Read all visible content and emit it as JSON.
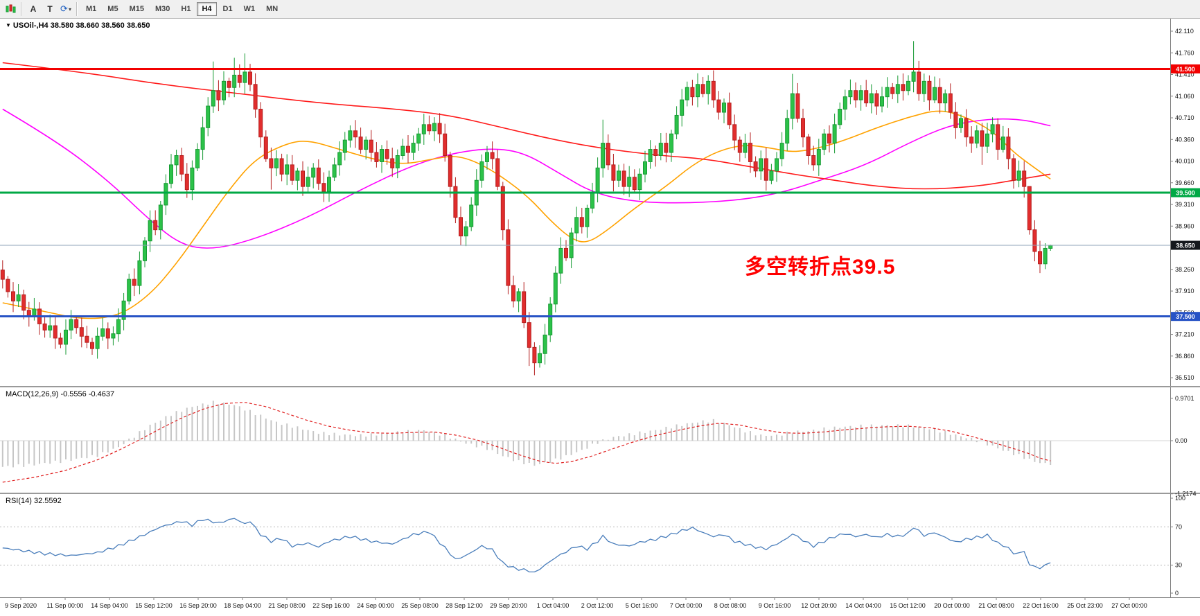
{
  "toolbar": {
    "chart_icon": "candlestick-chart-icon",
    "tools": [
      {
        "label": "A"
      },
      {
        "label": "T"
      }
    ],
    "refresh_icon": "cycle-arrows-icon",
    "timeframes": [
      "M1",
      "M5",
      "M15",
      "M30",
      "H1",
      "H4",
      "D1",
      "W1",
      "MN"
    ],
    "active_timeframe": "H4"
  },
  "chart": {
    "symbol": "USOil-,H4",
    "ohlc": "38.580 38.660 38.560 38.650",
    "open": "38.580",
    "high": "38.660",
    "low": "38.560",
    "close": "38.650",
    "annotation": {
      "text": "多空转折点39.5",
      "color": "#ff0000"
    },
    "price_axis": [
      "42.110",
      "41.760",
      "41.410",
      "41.060",
      "40.710",
      "40.360",
      "40.010",
      "39.660",
      "39.310",
      "38.960",
      "38.610",
      "38.260",
      "37.910",
      "37.560",
      "37.210",
      "36.860",
      "36.510"
    ],
    "hlines": [
      {
        "price": 41.5,
        "label": "41.500",
        "color": "#f20000",
        "width": 3,
        "type": "resistance"
      },
      {
        "price": 39.5,
        "label": "39.500",
        "color": "#00a845",
        "width": 3,
        "type": "pivot"
      },
      {
        "price": 37.5,
        "label": "37.500",
        "color": "#2753c5",
        "width": 3,
        "type": "support"
      },
      {
        "price": 38.65,
        "label": "38.650",
        "color": "#15181d",
        "width": 1,
        "type": "current",
        "line_color": "#8fa3b8"
      }
    ]
  },
  "macd": {
    "label": "MACD(12,26,9) -0.5556 -0.4637",
    "value": -0.5556,
    "signal": -0.4637,
    "axis": [
      {
        "v": 0.9701,
        "label": "0.9701"
      },
      {
        "v": 0,
        "label": "0.00"
      },
      {
        "v": -1.2174,
        "label": "-1.2174"
      }
    ]
  },
  "rsi": {
    "label": "RSI(14) 32.5592",
    "value": 32.5592,
    "axis": [
      {
        "v": 100,
        "label": "100"
      },
      {
        "v": 70,
        "label": "70"
      },
      {
        "v": 30,
        "label": "30"
      },
      {
        "v": 0,
        "label": "0"
      }
    ],
    "levels": [
      70,
      30
    ]
  },
  "time_axis": [
    "9 Sep 2020",
    "11 Sep 00:00",
    "14 Sep 04:00",
    "15 Sep 12:00",
    "16 Sep 20:00",
    "18 Sep 04:00",
    "21 Sep 08:00",
    "22 Sep 16:00",
    "24 Sep 00:00",
    "25 Sep 08:00",
    "28 Sep 12:00",
    "29 Sep 20:00",
    "1 Oct 04:00",
    "2 Oct 12:00",
    "5 Oct 16:00",
    "7 Oct 00:00",
    "8 Oct 08:00",
    "9 Oct 16:00",
    "12 Oct 20:00",
    "14 Oct 04:00",
    "15 Oct 12:00",
    "20 Oct 00:00",
    "21 Oct 08:00",
    "22 Oct 16:00",
    "25 Oct 23:00",
    "27 Oct 00:00"
  ],
  "colors": {
    "bull_fill": "#2cc249",
    "bull_stroke": "#169a33",
    "bear_fill": "#e12d2d",
    "bear_stroke": "#b51f1f",
    "ma_red": "#ff1a1a",
    "ma_magenta": "#ff00ff",
    "ma_orange": "#ffa200",
    "macd_hist": "#c6c6c6",
    "macd_signal": "#e02020",
    "rsi_line": "#4a7ebb",
    "axis_text": "#111111",
    "separator": "#9a9a9a",
    "panel_bg": "#ffffff"
  },
  "chart_data": {
    "type": "candlestick",
    "timeframe": "H4",
    "symbol": "USOil",
    "price_range": [
      36.42,
      42.31
    ],
    "first_open": 38.25,
    "candles_closes": [
      38.1,
      37.9,
      37.75,
      37.85,
      37.6,
      37.5,
      37.62,
      37.38,
      37.28,
      37.35,
      37.15,
      37.05,
      37.28,
      37.45,
      37.32,
      37.18,
      37.08,
      36.98,
      37.18,
      37.3,
      37.15,
      37.22,
      37.45,
      37.75,
      38.1,
      38.0,
      38.4,
      38.72,
      39.05,
      38.9,
      39.3,
      39.65,
      39.95,
      40.1,
      39.8,
      39.55,
      39.9,
      40.2,
      40.55,
      40.9,
      41.15,
      41.0,
      41.3,
      41.2,
      41.4,
      41.28,
      41.45,
      41.25,
      40.85,
      40.4,
      40.05,
      39.9,
      40.05,
      39.8,
      39.95,
      39.7,
      39.85,
      39.6,
      39.75,
      39.9,
      39.65,
      39.52,
      39.75,
      39.95,
      40.15,
      40.35,
      40.5,
      40.4,
      40.2,
      40.35,
      40.15,
      40.0,
      40.2,
      40.05,
      39.9,
      40.1,
      40.25,
      40.15,
      40.3,
      40.45,
      40.6,
      40.5,
      40.62,
      40.45,
      40.1,
      39.6,
      39.1,
      38.8,
      38.95,
      39.3,
      39.7,
      40.0,
      40.15,
      40.05,
      39.6,
      38.9,
      38.0,
      37.75,
      37.9,
      37.4,
      37.0,
      36.75,
      36.9,
      37.2,
      37.7,
      38.2,
      38.6,
      38.45,
      38.85,
      39.1,
      38.95,
      39.25,
      39.5,
      39.9,
      40.3,
      39.95,
      39.7,
      39.85,
      39.6,
      39.75,
      39.55,
      39.8,
      40.0,
      40.2,
      40.1,
      40.3,
      40.15,
      40.45,
      40.75,
      41.0,
      41.2,
      41.05,
      41.25,
      41.1,
      41.3,
      41.0,
      40.8,
      40.95,
      40.6,
      40.35,
      40.15,
      40.3,
      40.0,
      39.85,
      40.05,
      39.7,
      39.85,
      40.05,
      40.3,
      40.7,
      41.1,
      40.7,
      40.4,
      40.1,
      39.95,
      40.2,
      40.45,
      40.3,
      40.6,
      40.85,
      41.05,
      41.15,
      41.0,
      41.15,
      40.95,
      41.1,
      40.9,
      41.05,
      41.2,
      41.1,
      41.25,
      41.15,
      41.3,
      41.45,
      41.1,
      41.3,
      41.0,
      41.2,
      40.95,
      41.1,
      40.8,
      40.55,
      40.7,
      40.4,
      40.3,
      40.5,
      40.25,
      40.45,
      40.6,
      40.2,
      40.4,
      40.05,
      39.7,
      39.85,
      39.6,
      38.9,
      38.55,
      38.35,
      38.6,
      38.65
    ],
    "wick_overrides": {
      "17": {
        "low": 36.88
      },
      "40": {
        "high": 41.62
      },
      "44": {
        "high": 41.68
      },
      "46": {
        "high": 41.75
      },
      "51": {
        "low": 39.55
      },
      "61": {
        "low": 39.35
      },
      "82": {
        "high": 40.72
      },
      "100": {
        "low": 36.7
      },
      "101": {
        "low": 36.55
      },
      "114": {
        "high": 40.68
      },
      "150": {
        "high": 41.42
      },
      "173": {
        "high": 41.95
      },
      "186": {
        "low": 39.95
      },
      "195": {
        "high": 39.25
      },
      "197": {
        "low": 38.2
      },
      "199": {
        "high": 38.66,
        "low": 38.56
      }
    },
    "ma_red": [
      [
        0,
        41.6
      ],
      [
        15,
        41.45
      ],
      [
        30,
        41.25
      ],
      [
        45,
        41.1
      ],
      [
        60,
        40.95
      ],
      [
        75,
        40.85
      ],
      [
        85,
        40.75
      ],
      [
        95,
        40.55
      ],
      [
        105,
        40.35
      ],
      [
        115,
        40.2
      ],
      [
        125,
        40.1
      ],
      [
        133,
        40.05
      ],
      [
        140,
        39.95
      ],
      [
        150,
        39.8
      ],
      [
        158,
        39.7
      ],
      [
        166,
        39.6
      ],
      [
        175,
        39.55
      ],
      [
        185,
        39.6
      ],
      [
        192,
        39.7
      ],
      [
        199,
        39.8
      ]
    ],
    "ma_magenta": [
      [
        0,
        40.85
      ],
      [
        10,
        40.35
      ],
      [
        20,
        39.7
      ],
      [
        28,
        39.05
      ],
      [
        34,
        38.65
      ],
      [
        40,
        38.58
      ],
      [
        48,
        38.75
      ],
      [
        58,
        39.1
      ],
      [
        68,
        39.55
      ],
      [
        78,
        39.95
      ],
      [
        86,
        40.15
      ],
      [
        93,
        40.22
      ],
      [
        99,
        40.15
      ],
      [
        106,
        39.8
      ],
      [
        112,
        39.5
      ],
      [
        120,
        39.35
      ],
      [
        130,
        39.33
      ],
      [
        140,
        39.38
      ],
      [
        148,
        39.5
      ],
      [
        156,
        39.72
      ],
      [
        164,
        39.95
      ],
      [
        172,
        40.3
      ],
      [
        180,
        40.6
      ],
      [
        188,
        40.7
      ],
      [
        194,
        40.68
      ],
      [
        199,
        40.58
      ]
    ],
    "ma_orange": [
      [
        0,
        37.72
      ],
      [
        8,
        37.58
      ],
      [
        15,
        37.45
      ],
      [
        22,
        37.5
      ],
      [
        28,
        37.85
      ],
      [
        33,
        38.35
      ],
      [
        38,
        38.95
      ],
      [
        43,
        39.55
      ],
      [
        48,
        40.05
      ],
      [
        54,
        40.3
      ],
      [
        58,
        40.35
      ],
      [
        64,
        40.2
      ],
      [
        70,
        40.05
      ],
      [
        76,
        39.95
      ],
      [
        82,
        40.05
      ],
      [
        86,
        40.1
      ],
      [
        90,
        40.0
      ],
      [
        95,
        39.75
      ],
      [
        100,
        39.42
      ],
      [
        104,
        39.05
      ],
      [
        108,
        38.75
      ],
      [
        111,
        38.68
      ],
      [
        115,
        38.9
      ],
      [
        120,
        39.25
      ],
      [
        126,
        39.6
      ],
      [
        131,
        39.95
      ],
      [
        136,
        40.18
      ],
      [
        141,
        40.28
      ],
      [
        146,
        40.22
      ],
      [
        150,
        40.15
      ],
      [
        155,
        40.22
      ],
      [
        160,
        40.35
      ],
      [
        166,
        40.55
      ],
      [
        172,
        40.72
      ],
      [
        178,
        40.85
      ],
      [
        183,
        40.72
      ],
      [
        188,
        40.5
      ],
      [
        192,
        40.15
      ],
      [
        196,
        39.9
      ],
      [
        199,
        39.72
      ]
    ],
    "macd_hist_anchors": [
      [
        0,
        -0.6
      ],
      [
        6,
        -0.55
      ],
      [
        12,
        -0.46
      ],
      [
        18,
        -0.34
      ],
      [
        22,
        -0.15
      ],
      [
        24,
        0.02
      ],
      [
        28,
        0.35
      ],
      [
        32,
        0.6
      ],
      [
        36,
        0.78
      ],
      [
        40,
        0.88
      ],
      [
        44,
        0.82
      ],
      [
        48,
        0.62
      ],
      [
        52,
        0.42
      ],
      [
        56,
        0.3
      ],
      [
        60,
        0.18
      ],
      [
        64,
        0.14
      ],
      [
        68,
        0.12
      ],
      [
        72,
        0.15
      ],
      [
        76,
        0.2
      ],
      [
        80,
        0.24
      ],
      [
        84,
        0.12
      ],
      [
        88,
        -0.06
      ],
      [
        92,
        -0.18
      ],
      [
        95,
        -0.35
      ],
      [
        98,
        -0.48
      ],
      [
        101,
        -0.56
      ],
      [
        104,
        -0.48
      ],
      [
        107,
        -0.36
      ],
      [
        110,
        -0.22
      ],
      [
        113,
        -0.04
      ],
      [
        116,
        0.08
      ],
      [
        120,
        0.16
      ],
      [
        124,
        0.24
      ],
      [
        128,
        0.34
      ],
      [
        132,
        0.43
      ],
      [
        135,
        0.46
      ],
      [
        138,
        0.36
      ],
      [
        141,
        0.22
      ],
      [
        144,
        0.12
      ],
      [
        147,
        0.12
      ],
      [
        150,
        0.2
      ],
      [
        153,
        0.22
      ],
      [
        156,
        0.27
      ],
      [
        160,
        0.32
      ],
      [
        164,
        0.34
      ],
      [
        168,
        0.35
      ],
      [
        172,
        0.34
      ],
      [
        176,
        0.28
      ],
      [
        180,
        0.16
      ],
      [
        184,
        0.04
      ],
      [
        187,
        -0.08
      ],
      [
        190,
        -0.22
      ],
      [
        193,
        -0.34
      ],
      [
        196,
        -0.48
      ],
      [
        199,
        -0.556
      ]
    ],
    "macd_signal_anchors": [
      [
        0,
        -0.95
      ],
      [
        6,
        -0.84
      ],
      [
        12,
        -0.68
      ],
      [
        18,
        -0.44
      ],
      [
        22,
        -0.22
      ],
      [
        26,
        0.02
      ],
      [
        30,
        0.28
      ],
      [
        34,
        0.52
      ],
      [
        38,
        0.72
      ],
      [
        42,
        0.85
      ],
      [
        46,
        0.88
      ],
      [
        50,
        0.78
      ],
      [
        54,
        0.62
      ],
      [
        58,
        0.46
      ],
      [
        62,
        0.33
      ],
      [
        66,
        0.24
      ],
      [
        70,
        0.18
      ],
      [
        74,
        0.17
      ],
      [
        78,
        0.19
      ],
      [
        82,
        0.2
      ],
      [
        86,
        0.13
      ],
      [
        90,
        0.02
      ],
      [
        94,
        -0.14
      ],
      [
        98,
        -0.32
      ],
      [
        102,
        -0.47
      ],
      [
        105,
        -0.52
      ],
      [
        108,
        -0.48
      ],
      [
        112,
        -0.35
      ],
      [
        116,
        -0.18
      ],
      [
        120,
        -0.02
      ],
      [
        124,
        0.12
      ],
      [
        128,
        0.23
      ],
      [
        132,
        0.33
      ],
      [
        136,
        0.4
      ],
      [
        140,
        0.36
      ],
      [
        144,
        0.26
      ],
      [
        148,
        0.18
      ],
      [
        152,
        0.17
      ],
      [
        156,
        0.2
      ],
      [
        160,
        0.25
      ],
      [
        164,
        0.29
      ],
      [
        168,
        0.32
      ],
      [
        172,
        0.33
      ],
      [
        176,
        0.3
      ],
      [
        180,
        0.22
      ],
      [
        184,
        0.1
      ],
      [
        188,
        -0.04
      ],
      [
        192,
        -0.18
      ],
      [
        195,
        -0.3
      ],
      [
        197,
        -0.4
      ],
      [
        199,
        -0.464
      ]
    ],
    "rsi_anchors": [
      [
        0,
        48
      ],
      [
        8,
        42
      ],
      [
        13,
        40
      ],
      [
        18,
        43
      ],
      [
        22,
        50
      ],
      [
        27,
        62
      ],
      [
        30,
        70
      ],
      [
        34,
        76
      ],
      [
        36,
        72
      ],
      [
        38,
        78
      ],
      [
        41,
        74
      ],
      [
        44,
        79
      ],
      [
        46,
        73
      ],
      [
        47,
        76
      ],
      [
        49,
        62
      ],
      [
        51,
        55
      ],
      [
        53,
        58
      ],
      [
        55,
        50
      ],
      [
        58,
        53
      ],
      [
        60,
        49
      ],
      [
        62,
        55
      ],
      [
        66,
        60
      ],
      [
        70,
        55
      ],
      [
        74,
        52
      ],
      [
        78,
        62
      ],
      [
        81,
        65
      ],
      [
        84,
        48
      ],
      [
        86,
        36
      ],
      [
        88,
        40
      ],
      [
        91,
        50
      ],
      [
        93,
        46
      ],
      [
        95,
        32
      ],
      [
        97,
        27
      ],
      [
        100,
        24
      ],
      [
        101,
        22
      ],
      [
        103,
        30
      ],
      [
        105,
        38
      ],
      [
        107,
        44
      ],
      [
        109,
        50
      ],
      [
        111,
        47
      ],
      [
        113,
        55
      ],
      [
        114,
        60
      ],
      [
        116,
        52
      ],
      [
        119,
        50
      ],
      [
        121,
        54
      ],
      [
        124,
        57
      ],
      [
        127,
        62
      ],
      [
        129,
        66
      ],
      [
        131,
        69
      ],
      [
        133,
        64
      ],
      [
        135,
        60
      ],
      [
        137,
        62
      ],
      [
        139,
        55
      ],
      [
        141,
        52
      ],
      [
        143,
        49
      ],
      [
        145,
        47
      ],
      [
        147,
        52
      ],
      [
        149,
        58
      ],
      [
        150,
        63
      ],
      [
        152,
        56
      ],
      [
        154,
        50
      ],
      [
        156,
        55
      ],
      [
        158,
        60
      ],
      [
        160,
        63
      ],
      [
        162,
        60
      ],
      [
        164,
        62
      ],
      [
        166,
        59
      ],
      [
        168,
        62
      ],
      [
        170,
        60
      ],
      [
        172,
        63
      ],
      [
        173,
        70
      ],
      [
        175,
        61
      ],
      [
        177,
        64
      ],
      [
        179,
        59
      ],
      [
        181,
        54
      ],
      [
        183,
        57
      ],
      [
        185,
        59
      ],
      [
        187,
        61
      ],
      [
        189,
        53
      ],
      [
        191,
        48
      ],
      [
        192,
        42
      ],
      [
        194,
        44
      ],
      [
        195,
        31
      ],
      [
        196,
        28
      ],
      [
        197,
        27
      ],
      [
        198,
        30
      ],
      [
        199,
        32.56
      ]
    ]
  }
}
